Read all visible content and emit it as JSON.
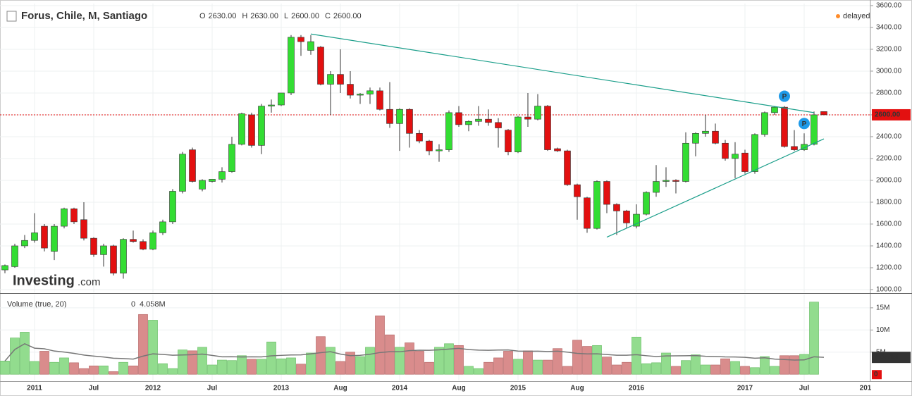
{
  "chart_data": {
    "type": "candlestick",
    "title": "Forus, Chile, M, Santiago",
    "legend_ohlc": [
      {
        "label": "O",
        "value": "2630.00"
      },
      {
        "label": "H",
        "value": "2630.00"
      },
      {
        "label": "L",
        "value": "2600.00"
      },
      {
        "label": "C",
        "value": "2600.00"
      }
    ],
    "status": "delayed",
    "logo": "Investing",
    "logo_suffix": ".com",
    "categories": [
      null,
      null,
      null,
      "2011",
      null,
      null,
      null,
      null,
      null,
      "Jul",
      null,
      null,
      null,
      null,
      null,
      "2012",
      null,
      null,
      null,
      null,
      null,
      "Jul",
      null,
      null,
      null,
      null,
      null,
      null,
      "2013",
      null,
      null,
      null,
      null,
      null,
      "Aug",
      null,
      null,
      null,
      null,
      null,
      "2014",
      null,
      null,
      null,
      null,
      null,
      "Aug",
      null,
      null,
      null,
      null,
      null,
      "2015",
      null,
      null,
      null,
      null,
      null,
      "Aug",
      null,
      null,
      null,
      null,
      null,
      "2016",
      null,
      null,
      null,
      null,
      null,
      null,
      null,
      null,
      null,
      null,
      "2017",
      null,
      null,
      null,
      null,
      null,
      "Jul",
      null,
      null
    ],
    "x_end_label": "201",
    "open": [
      1180,
      1210,
      1400,
      1450,
      1580,
      1350,
      1580,
      1740,
      1640,
      1470,
      1320,
      1400,
      1150,
      1460,
      1440,
      1370,
      1520,
      1620,
      1900,
      2280,
      1920,
      1990,
      2010,
      2080,
      2330,
      2600,
      2320,
      2680,
      2690,
      2800,
      3310,
      3190,
      3220,
      2880,
      2970,
      2880,
      2780,
      2790,
      2820,
      2650,
      2520,
      2650,
      2430,
      2360,
      2270,
      2280,
      2620,
      2510,
      2540,
      2560,
      2530,
      2460,
      2260,
      2580,
      2560,
      2680,
      2290,
      2270,
      1960,
      1840,
      1560,
      1990,
      1780,
      1720,
      1580,
      1690,
      1890,
      1990,
      2000,
      1990,
      2340,
      2430,
      2450,
      2340,
      2200,
      2250,
      2080,
      2420,
      2620,
      2670,
      2310,
      2280,
      2330,
      2630
    ],
    "high": [
      1230,
      1420,
      1500,
      1700,
      1600,
      1600,
      1750,
      1750,
      1800,
      1480,
      1420,
      1410,
      1470,
      1540,
      1460,
      1540,
      1640,
      1920,
      2260,
      2300,
      2010,
      2010,
      2120,
      2400,
      2620,
      2620,
      2700,
      2740,
      2800,
      3330,
      3330,
      3330,
      3230,
      3000,
      3200,
      3000,
      2800,
      2850,
      2850,
      2900,
      2660,
      2660,
      2460,
      2370,
      2330,
      2640,
      2680,
      2550,
      2680,
      2650,
      2570,
      2470,
      2590,
      2800,
      2790,
      2690,
      2300,
      2280,
      1970,
      1850,
      2000,
      2000,
      1790,
      1730,
      1780,
      1900,
      2140,
      2120,
      2010,
      2440,
      2440,
      2600,
      2520,
      2370,
      2350,
      2280,
      2430,
      2630,
      2680,
      2680,
      2460,
      2430,
      2630,
      2630
    ],
    "low": [
      1150,
      1200,
      1380,
      1430,
      1350,
      1270,
      1560,
      1600,
      1450,
      1300,
      1210,
      1130,
      1100,
      1430,
      1360,
      1360,
      1500,
      1600,
      1880,
      1980,
      1900,
      1980,
      1980,
      2070,
      2320,
      2300,
      2240,
      2620,
      2680,
      2780,
      3140,
      3150,
      2870,
      2600,
      2800,
      2750,
      2700,
      2700,
      2640,
      2480,
      2270,
      2300,
      2340,
      2230,
      2170,
      2260,
      2490,
      2450,
      2500,
      2500,
      2300,
      2230,
      2250,
      2490,
      2550,
      2270,
      2260,
      1950,
      1640,
      1520,
      1550,
      1700,
      1500,
      1560,
      1560,
      1680,
      1850,
      1940,
      1880,
      1980,
      2220,
      2400,
      2330,
      2180,
      2020,
      2060,
      2060,
      2400,
      2600,
      2300,
      2270,
      2270,
      2320,
      2600
    ],
    "close": [
      1220,
      1400,
      1450,
      1520,
      1380,
      1580,
      1740,
      1620,
      1470,
      1320,
      1400,
      1150,
      1460,
      1440,
      1370,
      1520,
      1620,
      1900,
      2240,
      1990,
      2000,
      2010,
      2080,
      2330,
      2610,
      2320,
      2680,
      2690,
      2800,
      3310,
      3270,
      3270,
      2880,
      2970,
      2880,
      2780,
      2790,
      2820,
      2650,
      2520,
      2650,
      2430,
      2360,
      2270,
      2280,
      2620,
      2510,
      2540,
      2560,
      2530,
      2480,
      2260,
      2580,
      2560,
      2680,
      2280,
      2270,
      1960,
      1850,
      1560,
      1990,
      1780,
      1720,
      1610,
      1690,
      1890,
      1990,
      2000,
      1990,
      2340,
      2430,
      2450,
      2340,
      2200,
      2240,
      2080,
      2420,
      2620,
      2670,
      2310,
      2280,
      2330,
      2600,
      2600
    ],
    "up_color": "#33dd33",
    "down_color": "#e31010",
    "ylim": [
      974,
      3619
    ],
    "yticks": [
      {
        "value": 1000,
        "label": "1000.00"
      },
      {
        "value": 1200,
        "label": "1200.00"
      },
      {
        "value": 1400,
        "label": "1400.00"
      },
      {
        "value": 1600,
        "label": "1600.00"
      },
      {
        "value": 1800,
        "label": "1800.00"
      },
      {
        "value": 2000,
        "label": "2000.00"
      },
      {
        "value": 2200,
        "label": "2200.00"
      },
      {
        "value": 2400,
        "label": "2400.00"
      },
      {
        "value": 2600,
        "label": "2600.00"
      },
      {
        "value": 2800,
        "label": "2800.00"
      },
      {
        "value": 3000,
        "label": "3000.00"
      },
      {
        "value": 3200,
        "label": "3200.00"
      },
      {
        "value": 3400,
        "label": "3400.00"
      },
      {
        "value": 3600,
        "label": "3600.00"
      }
    ],
    "last_price": {
      "value": 2600,
      "label": "2600.00"
    },
    "trendlines": [
      {
        "from_index": 31,
        "from_value": 3340,
        "to_index": 82,
        "to_value": 2620,
        "color": "#1a9e8a"
      },
      {
        "from_index": 61,
        "from_value": 1480,
        "to_index": 83,
        "to_value": 2380,
        "color": "#1a9e8a"
      }
    ],
    "markers": [
      {
        "index": 79,
        "label": "P"
      },
      {
        "index": 81,
        "label": "P"
      }
    ],
    "grid": true,
    "volume": {
      "title": "Volume (true, 20)",
      "values": [
        3.0,
        8.2,
        9.5,
        2.9,
        5.2,
        2.7,
        3.7,
        2.6,
        1.3,
        1.9,
        1.9,
        0.6,
        2.7,
        1.9,
        13.5,
        12.2,
        2.4,
        1.3,
        5.5,
        5.3,
        6.1,
        2.1,
        3.2,
        3.1,
        4.2,
        3.4,
        3.4,
        7.3,
        3.5,
        3.7,
        2.3,
        4.8,
        8.5,
        6.1,
        2.9,
        5.0,
        4.0,
        6.1,
        13.2,
        8.9,
        6.1,
        7.1,
        5.2,
        2.7,
        6.1,
        6.9,
        6.5,
        1.8,
        1.3,
        2.7,
        3.7,
        5.2,
        3.4,
        5.3,
        3.2,
        3.2,
        5.8,
        1.8,
        7.7,
        6.3,
        6.5,
        3.9,
        2.1,
        2.7,
        8.4,
        2.4,
        2.6,
        4.8,
        1.8,
        3.1,
        4.4,
        2.1,
        2.1,
        3.5,
        2.9,
        1.8,
        1.5,
        4.0,
        1.8,
        4.2,
        4.2,
        4.5,
        16.3,
        0
      ],
      "ylim": [
        -1.4,
        18
      ],
      "yticks": [
        {
          "value": 5,
          "label": "5M"
        },
        {
          "value": 10,
          "label": "10M"
        },
        {
          "value": 15,
          "label": "15M"
        }
      ],
      "ma_period": 20,
      "ma_label": "4.058M",
      "up_color": "#92dc8e",
      "down_color": "#d98c8c"
    }
  }
}
